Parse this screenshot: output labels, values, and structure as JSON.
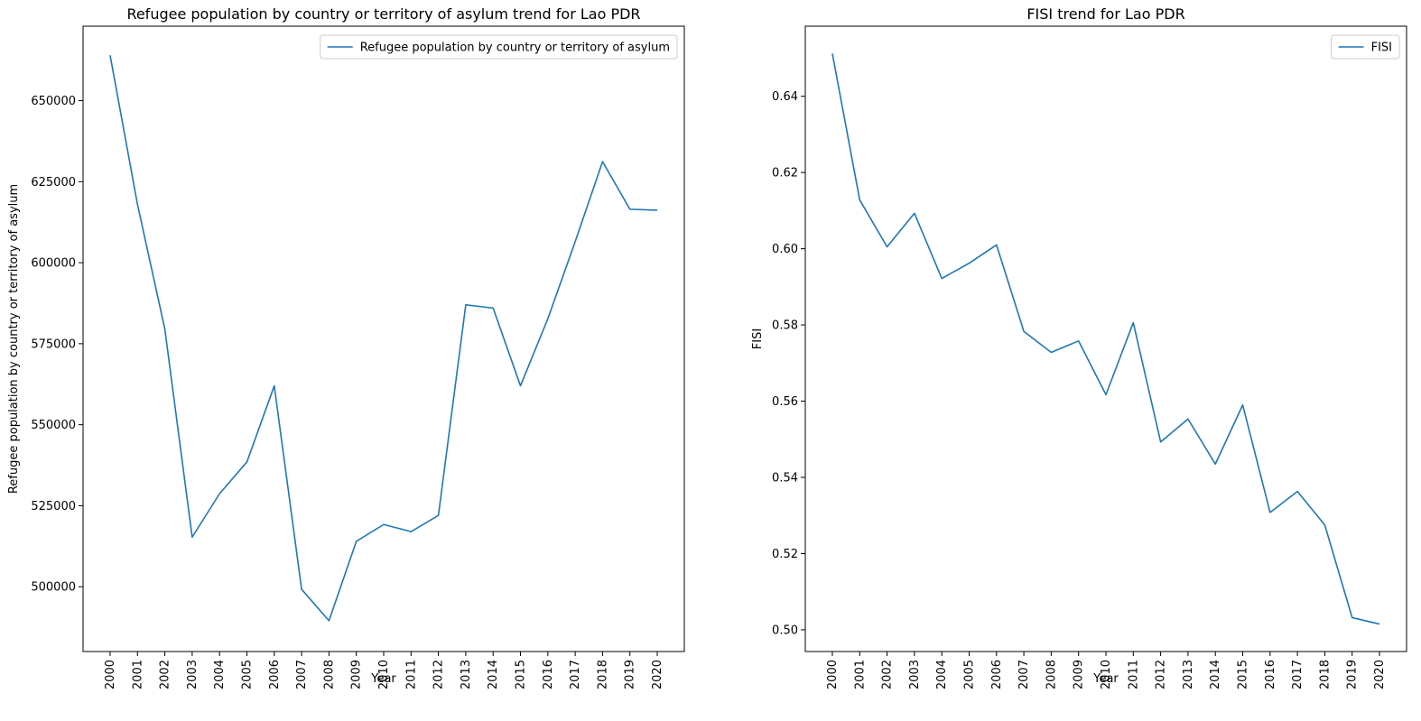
{
  "chart_data": [
    {
      "type": "line",
      "title": "Refugee population by country or territory of asylum trend for Lao PDR",
      "xlabel": "Year",
      "ylabel": "Refugee population by country or territory of asylum",
      "x": [
        "2000",
        "2001",
        "2002",
        "2003",
        "2004",
        "2005",
        "2006",
        "2007",
        "2008",
        "2009",
        "2010",
        "2011",
        "2012",
        "2013",
        "2014",
        "2015",
        "2016",
        "2017",
        "2018",
        "2019",
        "2020"
      ],
      "series": [
        {
          "name": "Refugee population by country or territory of asylum",
          "values": [
            664000,
            618000,
            579500,
            515300,
            528700,
            538500,
            562000,
            499200,
            489500,
            514000,
            519200,
            517000,
            522000,
            587000,
            586000,
            562000,
            582700,
            606500,
            631200,
            616500,
            616200
          ]
        }
      ],
      "yticks": [
        500000,
        525000,
        550000,
        575000,
        600000,
        625000,
        650000
      ],
      "ylim": [
        480000,
        673000
      ],
      "color": "#1f77b4",
      "legend": "upper right",
      "grid": false
    },
    {
      "type": "line",
      "title": "FISI trend for Lao PDR",
      "xlabel": "Year",
      "ylabel": "FISI",
      "x": [
        "2000",
        "2001",
        "2002",
        "2003",
        "2004",
        "2005",
        "2006",
        "2007",
        "2008",
        "2009",
        "2010",
        "2011",
        "2012",
        "2013",
        "2014",
        "2015",
        "2016",
        "2017",
        "2018",
        "2019",
        "2020"
      ],
      "series": [
        {
          "name": "FISI",
          "values": [
            0.6512,
            0.6128,
            0.6005,
            0.6093,
            0.5922,
            0.5962,
            0.601,
            0.5783,
            0.5728,
            0.5758,
            0.5617,
            0.5806,
            0.5493,
            0.5553,
            0.5435,
            0.559,
            0.5308,
            0.5363,
            0.5275,
            0.5032,
            0.5015
          ]
        }
      ],
      "yticks": [
        0.5,
        0.52,
        0.54,
        0.56,
        0.58,
        0.6,
        0.62,
        0.64
      ],
      "ylim": [
        0.4943,
        0.6584
      ],
      "color": "#1f77b4",
      "legend": "upper right",
      "grid": false
    }
  ]
}
